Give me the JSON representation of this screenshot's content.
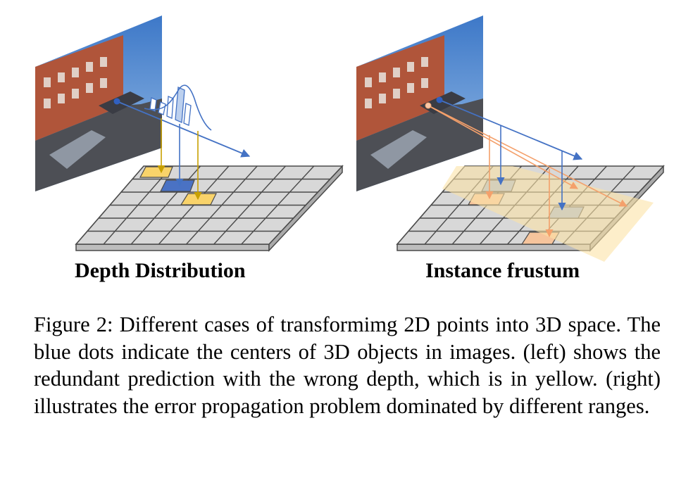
{
  "panels": {
    "left": {
      "label": "Depth Distribution"
    },
    "right": {
      "label": "Instance frustum"
    }
  },
  "caption": {
    "number": "Figure 2:",
    "text": "Different cases of transformimg 2D points into 3D space. The blue dots indicate the centers of 3D objects in images. (left) shows the redundant prediction with the wrong depth, which is in yellow. (right) illustrates the error propagation problem dominated by different ranges."
  },
  "colors": {
    "grid_fill": "#d8d8d8",
    "grid_line": "#4a4a4a",
    "highlight_yellow": "#f9d36a",
    "highlight_blue": "#4a72c4",
    "highlight_salmon": "#f4b890",
    "ray_blue": "#4472c4",
    "ray_orange": "#f4a06b",
    "arrow_gold": "#c8a000",
    "frustum": "#fbe2a6"
  },
  "icons": [
    "street-photo-icon",
    "depth-histogram-icon"
  ]
}
